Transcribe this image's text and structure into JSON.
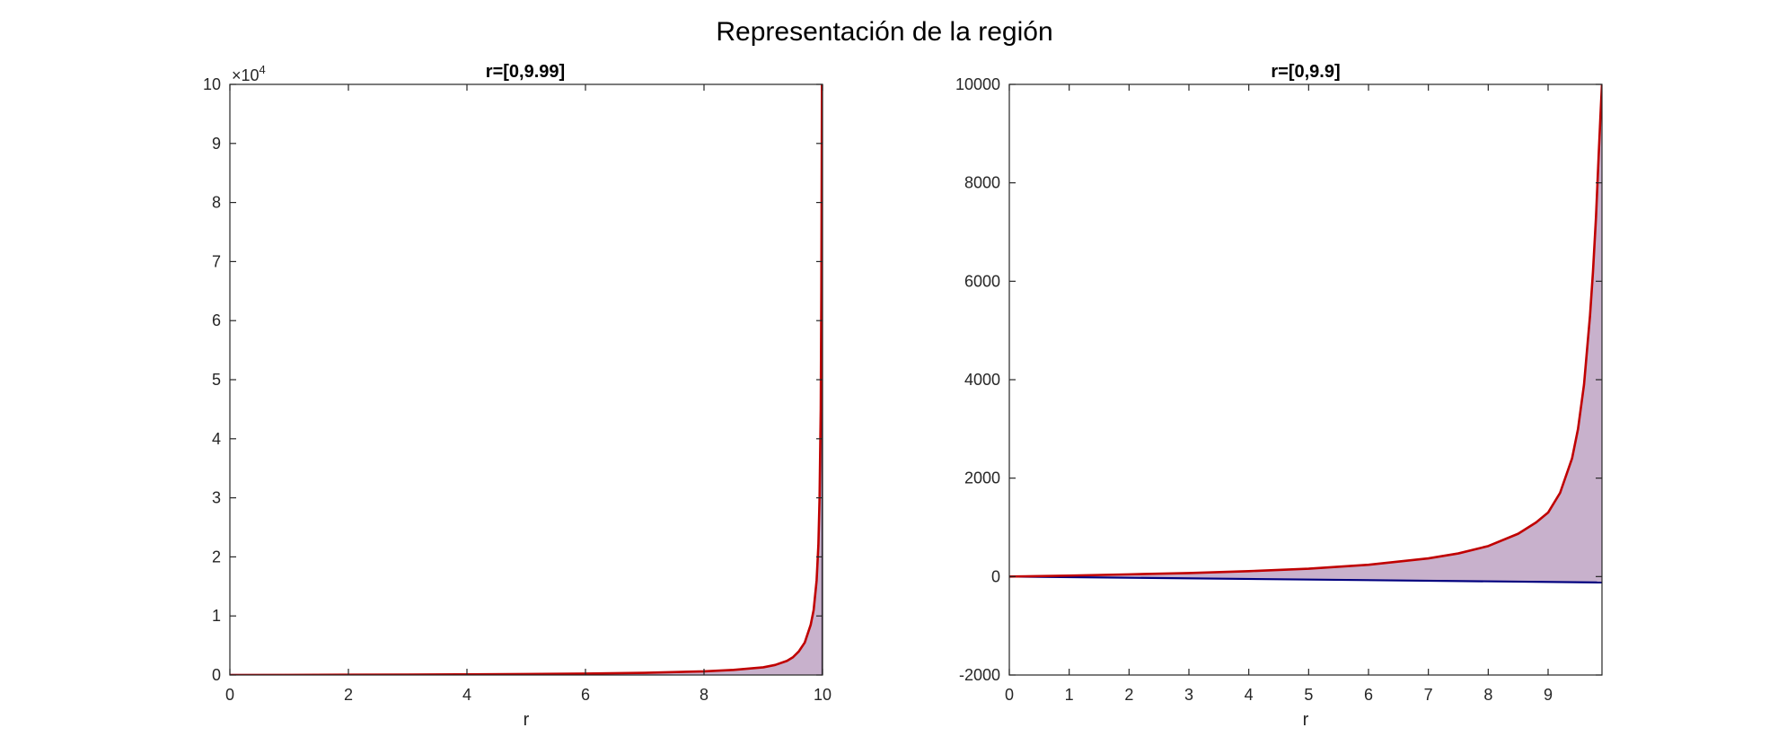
{
  "figure_title": "Representación de la región",
  "colors": {
    "upper": "#c00000",
    "lower": "#00007f",
    "fill": "#c8b1cc",
    "edge": "#3a2040"
  },
  "chart_data": [
    {
      "type": "area",
      "title": "r=[0,9.99]",
      "xlabel": "r",
      "ylabel": "",
      "xlim": [
        0,
        10
      ],
      "ylim": [
        0,
        100000
      ],
      "xticks": [
        0,
        2,
        4,
        6,
        8,
        10
      ],
      "yticks": [
        0,
        10000,
        20000,
        30000,
        40000,
        50000,
        60000,
        70000,
        80000,
        90000,
        100000
      ],
      "ytick_labels": [
        "0",
        "1",
        "2",
        "3",
        "4",
        "5",
        "6",
        "7",
        "8",
        "9",
        "10"
      ],
      "y_multiplier": {
        "base": "×10",
        "exponent": "4"
      },
      "grid": false,
      "x_range": [
        0,
        9.99
      ],
      "series": [
        {
          "role": "upper",
          "x": [
            0,
            1,
            2,
            3,
            4,
            5,
            6,
            7,
            8,
            8.5,
            9,
            9.2,
            9.4,
            9.5,
            9.6,
            9.7,
            9.8,
            9.85,
            9.9,
            9.93,
            9.95,
            9.97,
            9.98,
            9.99
          ],
          "y": [
            0,
            20,
            45,
            72,
            110,
            160,
            240,
            370,
            620,
            870,
            1300,
            1700,
            2400,
            3000,
            4000,
            5500,
            8500,
            11000,
            16000,
            22000,
            30000,
            45000,
            65000,
            100000
          ]
        },
        {
          "role": "lower",
          "x": [
            0,
            9.99
          ],
          "y": [
            0,
            -120
          ]
        }
      ]
    },
    {
      "type": "area",
      "title": "r=[0,9.9]",
      "xlabel": "r",
      "ylabel": "",
      "xlim": [
        0,
        9.9
      ],
      "ylim": [
        -2000,
        10000
      ],
      "xticks": [
        0,
        1,
        2,
        3,
        4,
        5,
        6,
        7,
        8,
        9
      ],
      "yticks": [
        -2000,
        0,
        2000,
        4000,
        6000,
        8000,
        10000
      ],
      "ytick_labels": [
        "-2000",
        "0",
        "2000",
        "4000",
        "6000",
        "8000",
        "10000"
      ],
      "grid": false,
      "x_range": [
        0,
        9.9
      ],
      "series": [
        {
          "role": "upper",
          "x": [
            0,
            1,
            2,
            3,
            4,
            5,
            6,
            7,
            7.5,
            8,
            8.5,
            8.8,
            9,
            9.2,
            9.4,
            9.5,
            9.6,
            9.7,
            9.75,
            9.8,
            9.85,
            9.88,
            9.9
          ],
          "y": [
            0,
            20,
            45,
            72,
            110,
            160,
            240,
            370,
            470,
            620,
            870,
            1100,
            1300,
            1700,
            2400,
            3000,
            3900,
            5300,
            6200,
            7300,
            8700,
            9500,
            10000
          ]
        },
        {
          "role": "lower",
          "x": [
            0,
            9.9
          ],
          "y": [
            0,
            -120
          ]
        }
      ]
    }
  ]
}
